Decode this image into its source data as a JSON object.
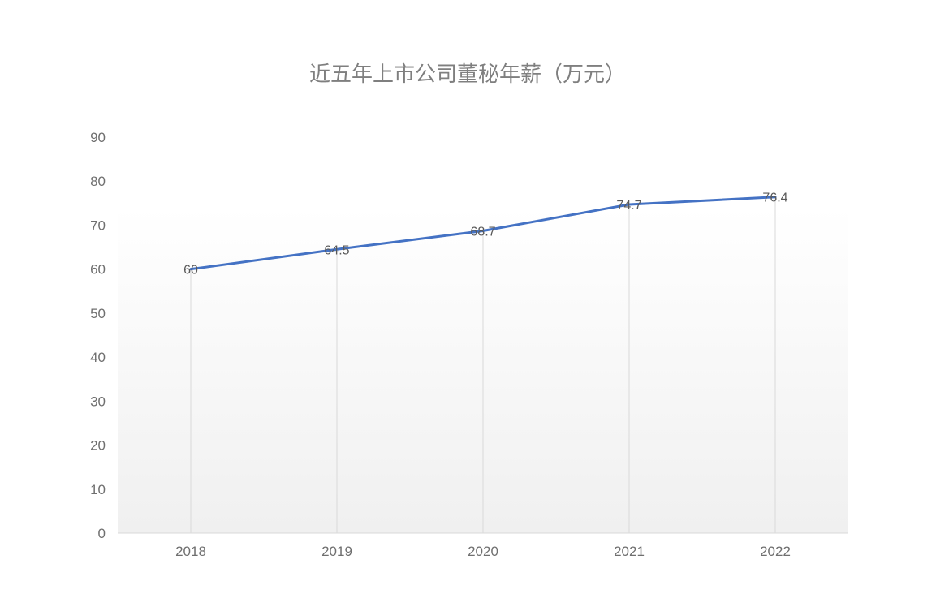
{
  "chart_data": {
    "type": "line",
    "title": "近五年上市公司董秘年薪（万元）",
    "xlabel": "",
    "ylabel": "",
    "categories": [
      "2018",
      "2019",
      "2020",
      "2021",
      "2022"
    ],
    "series": [
      {
        "values": [
          60,
          64.5,
          68.7,
          74.7,
          76.4
        ],
        "data_labels": [
          "60",
          "64.5",
          "68.7",
          "74.7",
          "76.4"
        ],
        "color": "#4472c4"
      }
    ],
    "ylim": [
      0,
      90
    ],
    "yticks": [
      "0",
      "10",
      "20",
      "30",
      "40",
      "50",
      "60",
      "70",
      "80",
      "90"
    ],
    "grid": "vertical lines at categories",
    "legend": "none",
    "plot_background": "gradient white to light gray"
  }
}
